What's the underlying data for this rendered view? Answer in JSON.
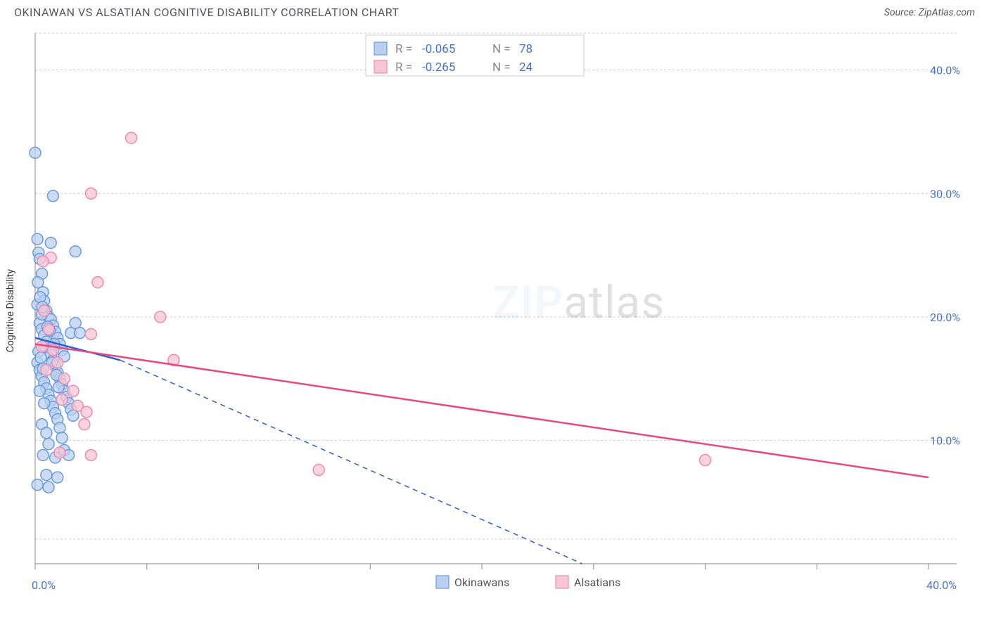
{
  "header": {
    "title": "OKINAWAN VS ALSATIAN COGNITIVE DISABILITY CORRELATION CHART",
    "source": "Source: ZipAtlas.com"
  },
  "chart": {
    "type": "scatter",
    "y_axis_label": "Cognitive Disability",
    "xlim": [
      0,
      40
    ],
    "ylim": [
      0,
      43
    ],
    "x_ticks": [
      0,
      5,
      10,
      15,
      20,
      25,
      30,
      35,
      40
    ],
    "x_tick_labels_shown": {
      "0": "0.0%",
      "40": "40.0%"
    },
    "y_ticks": [
      10,
      20,
      30,
      40
    ],
    "y_tick_labels": [
      "10.0%",
      "20.0%",
      "30.0%",
      "40.0%"
    ],
    "y_grid": [
      2,
      10,
      20,
      30,
      40,
      43
    ],
    "background_color": "#ffffff",
    "grid_color": "#cccccc",
    "axis_color": "#888888",
    "label_color": "#4a72c4",
    "title_fontsize": 16,
    "tick_fontsize": 16,
    "marker_radius": 8,
    "marker_stroke_width": 1.5,
    "watermark": {
      "text_zip": "ZIP",
      "text_atlas": "atlas",
      "fontsize": 64
    },
    "series": [
      {
        "name": "Okinawans",
        "fill": "#b9d0ef",
        "stroke": "#6a9ae0",
        "trend_color": "#2a5fd0",
        "trend_solid": {
          "x1": 0,
          "y1": 18.3,
          "x2": 3.8,
          "y2": 16.5
        },
        "trend_dashed": {
          "x1": 3.8,
          "y1": 16.5,
          "x2": 24.5,
          "y2": 0
        },
        "r": "-0.065",
        "n": "78",
        "points": [
          [
            0.0,
            33.3
          ],
          [
            0.1,
            26.3
          ],
          [
            0.7,
            26.0
          ],
          [
            0.15,
            25.2
          ],
          [
            0.2,
            24.7
          ],
          [
            1.8,
            25.3
          ],
          [
            0.3,
            23.5
          ],
          [
            0.35,
            22.0
          ],
          [
            0.4,
            21.3
          ],
          [
            0.1,
            21.0
          ],
          [
            0.5,
            20.5
          ],
          [
            0.6,
            20.0
          ],
          [
            0.7,
            19.8
          ],
          [
            0.2,
            19.5
          ],
          [
            0.8,
            19.3
          ],
          [
            0.3,
            19.0
          ],
          [
            0.9,
            18.8
          ],
          [
            0.4,
            18.5
          ],
          [
            1.0,
            18.3
          ],
          [
            0.5,
            18.0
          ],
          [
            1.1,
            17.8
          ],
          [
            0.6,
            17.5
          ],
          [
            1.2,
            17.3
          ],
          [
            0.7,
            17.0
          ],
          [
            1.3,
            16.8
          ],
          [
            0.8,
            16.5
          ],
          [
            0.1,
            16.3
          ],
          [
            0.9,
            16.0
          ],
          [
            0.2,
            15.7
          ],
          [
            1.0,
            15.5
          ],
          [
            0.3,
            15.2
          ],
          [
            1.1,
            15.0
          ],
          [
            0.4,
            14.7
          ],
          [
            1.2,
            14.5
          ],
          [
            0.5,
            14.2
          ],
          [
            1.3,
            14.0
          ],
          [
            0.6,
            13.7
          ],
          [
            1.4,
            13.5
          ],
          [
            0.7,
            13.2
          ],
          [
            1.5,
            13.0
          ],
          [
            0.8,
            12.7
          ],
          [
            1.6,
            12.5
          ],
          [
            0.9,
            12.2
          ],
          [
            1.7,
            12.0
          ],
          [
            1.0,
            11.7
          ],
          [
            0.3,
            11.3
          ],
          [
            1.1,
            11.0
          ],
          [
            0.5,
            10.6
          ],
          [
            1.2,
            10.2
          ],
          [
            0.6,
            9.7
          ],
          [
            1.3,
            9.2
          ],
          [
            0.35,
            8.8
          ],
          [
            0.9,
            8.6
          ],
          [
            0.8,
            29.8
          ],
          [
            0.5,
            7.2
          ],
          [
            1.0,
            7.0
          ],
          [
            0.1,
            6.4
          ],
          [
            0.6,
            6.2
          ],
          [
            1.6,
            18.7
          ],
          [
            1.8,
            19.5
          ],
          [
            1.5,
            8.8
          ],
          [
            0.2,
            14.0
          ],
          [
            0.4,
            13.0
          ],
          [
            0.3,
            20.2
          ],
          [
            2.0,
            18.7
          ],
          [
            0.15,
            17.2
          ],
          [
            0.25,
            16.7
          ],
          [
            0.35,
            15.8
          ],
          [
            0.45,
            17.6
          ],
          [
            0.55,
            19.2
          ],
          [
            0.65,
            18.9
          ],
          [
            0.75,
            16.3
          ],
          [
            0.85,
            17.8
          ],
          [
            0.95,
            15.3
          ],
          [
            1.05,
            14.3
          ],
          [
            0.12,
            22.8
          ],
          [
            0.22,
            21.6
          ],
          [
            0.32,
            20.8
          ]
        ]
      },
      {
        "name": "Alsatians",
        "fill": "#f7c6d5",
        "stroke": "#ec8ab0",
        "trend_color": "#e8487f",
        "trend_solid": {
          "x1": 0,
          "y1": 17.8,
          "x2": 40,
          "y2": 7.0
        },
        "trend_dashed": null,
        "r": "-0.265",
        "n": "24",
        "points": [
          [
            4.3,
            34.5
          ],
          [
            2.5,
            30.0
          ],
          [
            0.7,
            24.8
          ],
          [
            0.35,
            24.5
          ],
          [
            2.8,
            22.8
          ],
          [
            5.6,
            20.0
          ],
          [
            2.5,
            18.6
          ],
          [
            0.4,
            20.5
          ],
          [
            0.6,
            19.0
          ],
          [
            6.2,
            16.5
          ],
          [
            0.8,
            17.3
          ],
          [
            1.0,
            16.3
          ],
          [
            0.3,
            17.6
          ],
          [
            1.3,
            15.0
          ],
          [
            1.7,
            14.0
          ],
          [
            1.2,
            13.3
          ],
          [
            1.9,
            12.8
          ],
          [
            2.3,
            12.3
          ],
          [
            2.2,
            11.3
          ],
          [
            1.1,
            9.0
          ],
          [
            2.5,
            8.8
          ],
          [
            12.7,
            7.6
          ],
          [
            30.0,
            8.4
          ],
          [
            0.5,
            15.7
          ]
        ]
      }
    ],
    "legend_top": {
      "bg": "#ffffff",
      "border": "#cccccc",
      "label_color": "#888888",
      "value_color": "#4a72c4"
    },
    "legend_bottom": {
      "label_color": "#555560"
    }
  }
}
